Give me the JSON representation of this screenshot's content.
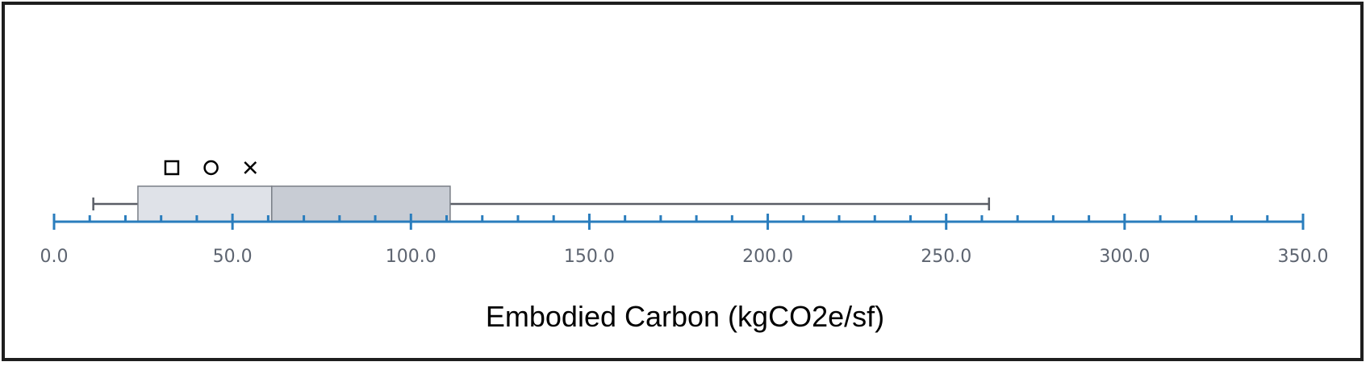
{
  "chart_data": {
    "type": "box",
    "orientation": "horizontal",
    "xlabel": "Embodied Carbon (kgCO2e/sf)",
    "xlim": [
      0,
      350
    ],
    "major_ticks": [
      0,
      50,
      100,
      150,
      200,
      250,
      300,
      350
    ],
    "tick_labels": [
      "0.0",
      "50.0",
      "100.0",
      "150.0",
      "200.0",
      "250.0",
      "300.0",
      "350.0"
    ],
    "minor_tick_step": 10,
    "box": {
      "whisker_min": 11,
      "q1": 23.5,
      "median": 61,
      "q3": 111,
      "whisker_max": 262
    },
    "markers": [
      {
        "symbol": "square",
        "value": 33
      },
      {
        "symbol": "circle",
        "value": 44
      },
      {
        "symbol": "cross",
        "value": 55
      }
    ],
    "colors": {
      "axis": "#2a7dbd",
      "box_lower": "#dfe2e8",
      "box_upper": "#c8ccd4",
      "box_stroke": "#7a7f87",
      "whisker": "#5a5e66",
      "marker": "#000000"
    }
  }
}
